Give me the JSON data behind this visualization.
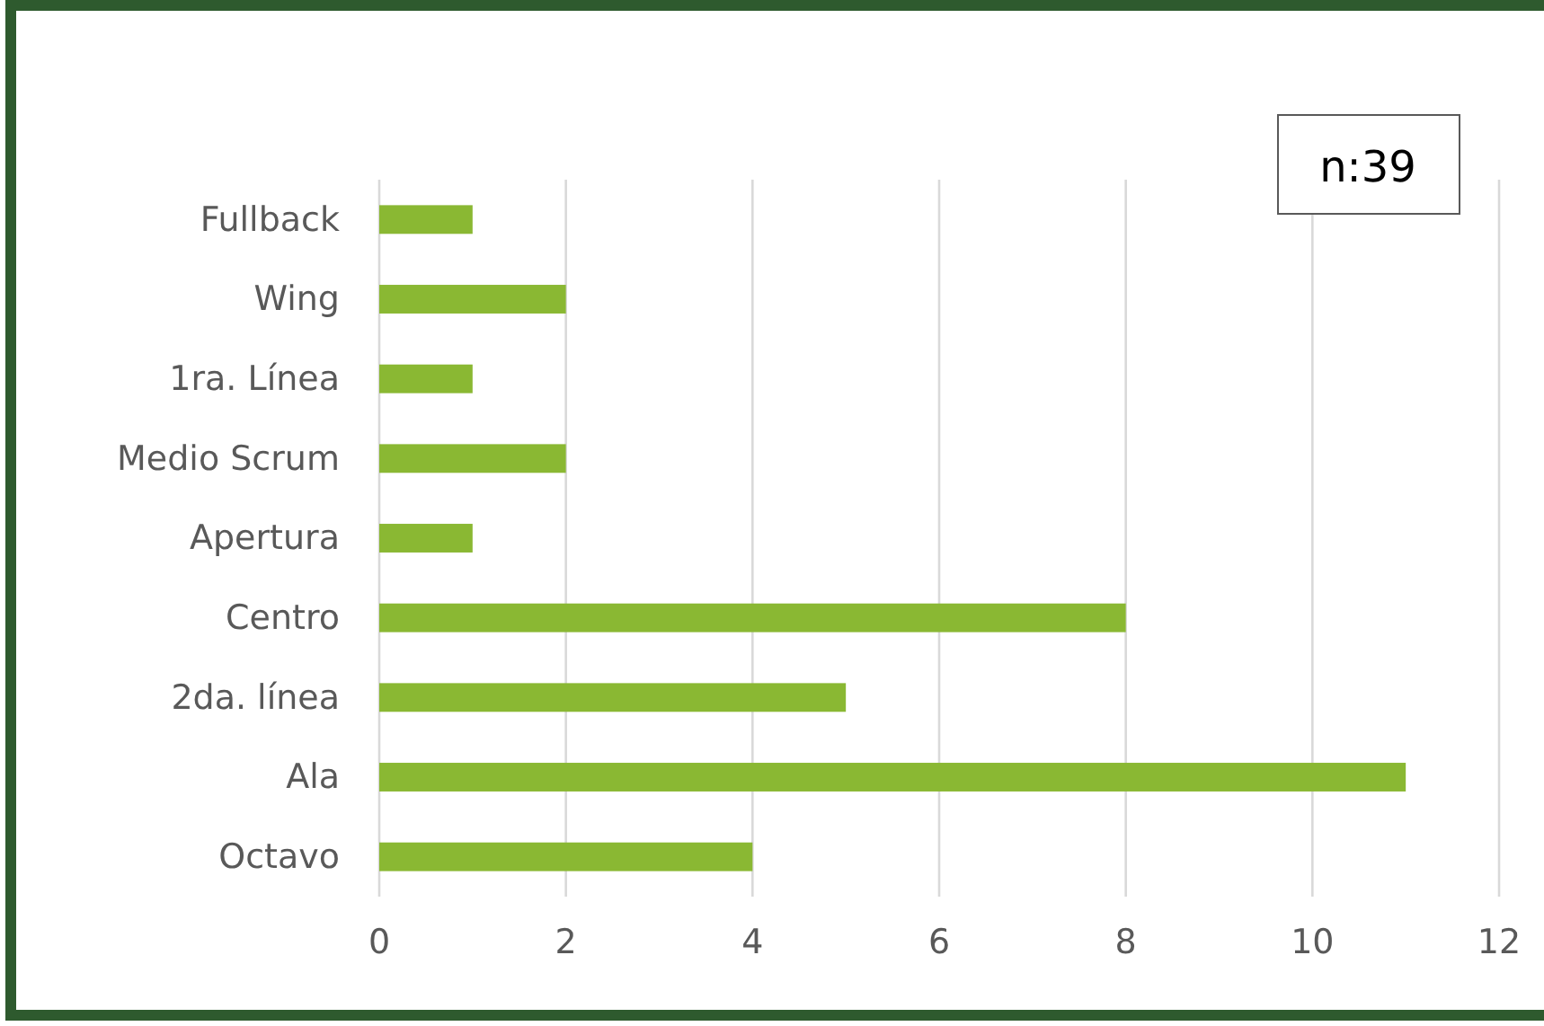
{
  "chart_data": {
    "type": "bar",
    "orientation": "horizontal",
    "categories": [
      "Fullback",
      "Wing",
      "1ra. Línea",
      "Medio Scrum",
      "Apertura",
      "Centro",
      "2da. línea",
      "Ala",
      "Octavo"
    ],
    "values": [
      1,
      2,
      1,
      2,
      1,
      8,
      5,
      11,
      4
    ],
    "color": "#8ab833",
    "xlim": [
      0,
      12
    ],
    "xticks": [
      0,
      2,
      4,
      6,
      8,
      10,
      12
    ],
    "grid": "x",
    "annotations": [
      "n:39"
    ]
  }
}
